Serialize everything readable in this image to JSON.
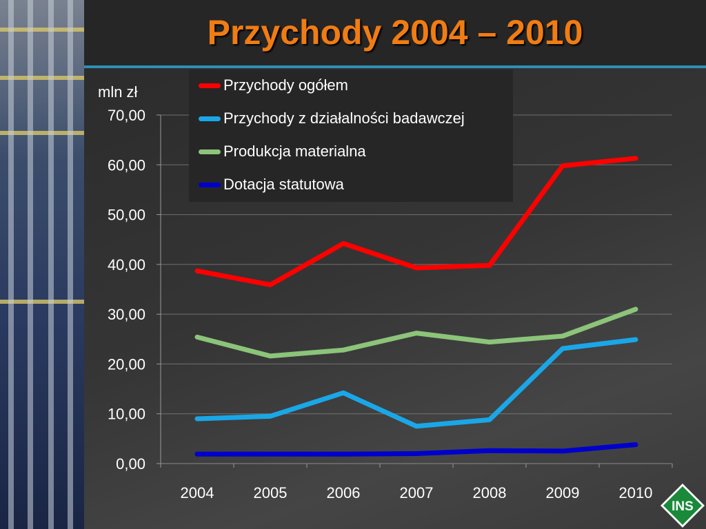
{
  "slide": {
    "title": "Przychody 2004 – 2010",
    "logo_text": "INS"
  },
  "colors": {
    "title": "#f07c14",
    "rule": "#2f8fb4",
    "logo": "#1a8a3a"
  },
  "chart_data": {
    "type": "line",
    "ylabel": "mln zł",
    "ylim": [
      0,
      70
    ],
    "y_ticks": [
      "0,00",
      "10,00",
      "20,00",
      "30,00",
      "40,00",
      "50,00",
      "60,00",
      "70,00"
    ],
    "categories": [
      "2004",
      "2005",
      "2006",
      "2007",
      "2008",
      "2009",
      "2010"
    ],
    "grid": true,
    "legend_position": "top",
    "series": [
      {
        "name": "Przychody ogółem",
        "color": "#ff0000",
        "values": [
          38.7,
          35.9,
          44.2,
          39.3,
          39.8,
          59.8,
          61.3
        ]
      },
      {
        "name": "Przychody z działalności badawczej",
        "color": "#1aa7e8",
        "values": [
          9.0,
          9.5,
          14.2,
          7.5,
          8.8,
          23.1,
          24.9
        ]
      },
      {
        "name": "Produkcja materialna",
        "color": "#8cc47a",
        "values": [
          25.4,
          21.6,
          22.8,
          26.2,
          24.4,
          25.6,
          31.0
        ]
      },
      {
        "name": "Dotacja statutowa",
        "color": "#0000cc",
        "values": [
          1.9,
          1.9,
          1.9,
          2.0,
          2.6,
          2.5,
          3.8
        ]
      }
    ]
  }
}
